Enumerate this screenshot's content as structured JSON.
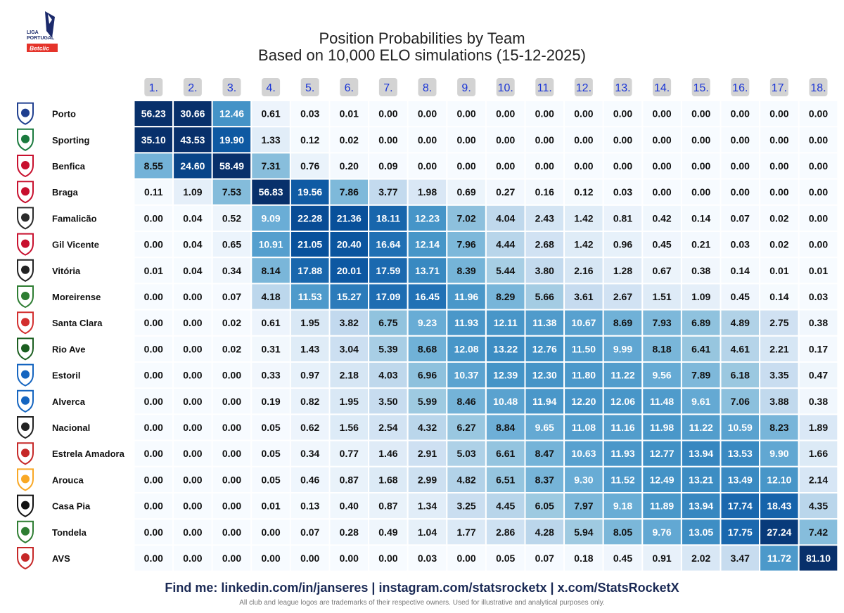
{
  "header": {
    "league_logo_text_top": "LIGA",
    "league_logo_text_mid": "PORTUGAL",
    "league_logo_badge": "Betclic",
    "title": "Position Probabilities by Team",
    "subtitle": "Based on 10,000 ELO simulations (15-12-2025)"
  },
  "footer": {
    "links": "Find me: linkedin.com/in/janseres | instagram.com/statsrocketx | x.com/StatsRocketX",
    "note": "All club and league logos are trademarks of their respective owners. Used for illustrative and analytical purposes only."
  },
  "chart_data": {
    "type": "heatmap",
    "title": "Position Probabilities by Team",
    "subtitle": "Based on 10,000 ELO simulations (15-12-2025)",
    "x_labels": [
      "1.",
      "2.",
      "3.",
      "4.",
      "5.",
      "6.",
      "7.",
      "8.",
      "9.",
      "10.",
      "11.",
      "12.",
      "13.",
      "14.",
      "15.",
      "16.",
      "17.",
      "18."
    ],
    "teams": [
      "Porto",
      "Sporting",
      "Benfica",
      "Braga",
      "Famalicão",
      "Gil Vicente",
      "Vitória",
      "Moreirense",
      "Santa Clara",
      "Rio Ave",
      "Estoril",
      "Alverca",
      "Nacional",
      "Estrela Amadora",
      "Arouca",
      "Casa Pia",
      "Tondela",
      "AVS"
    ],
    "crest_colors": [
      "#1f3f8f",
      "#1b7a3e",
      "#c8102e",
      "#c8102e",
      "#2b2b2b",
      "#c8102e",
      "#222222",
      "#2e7d32",
      "#d32f2f",
      "#1b5e20",
      "#1565c0",
      "#1565c0",
      "#222222",
      "#c62828",
      "#f9a825",
      "#111111",
      "#2e7d32",
      "#c62828"
    ],
    "values": [
      [
        56.23,
        30.66,
        12.46,
        0.61,
        0.03,
        0.01,
        0.0,
        0.0,
        0.0,
        0.0,
        0.0,
        0.0,
        0.0,
        0.0,
        0.0,
        0.0,
        0.0,
        0.0
      ],
      [
        35.1,
        43.53,
        19.9,
        1.33,
        0.12,
        0.02,
        0.0,
        0.0,
        0.0,
        0.0,
        0.0,
        0.0,
        0.0,
        0.0,
        0.0,
        0.0,
        0.0,
        0.0
      ],
      [
        8.55,
        24.6,
        58.49,
        7.31,
        0.76,
        0.2,
        0.09,
        0.0,
        0.0,
        0.0,
        0.0,
        0.0,
        0.0,
        0.0,
        0.0,
        0.0,
        0.0,
        0.0
      ],
      [
        0.11,
        1.09,
        7.53,
        56.83,
        19.56,
        7.86,
        3.77,
        1.98,
        0.69,
        0.27,
        0.16,
        0.12,
        0.03,
        0.0,
        0.0,
        0.0,
        0.0,
        0.0
      ],
      [
        0.0,
        0.04,
        0.52,
        9.09,
        22.28,
        21.36,
        18.11,
        12.23,
        7.02,
        4.04,
        2.43,
        1.42,
        0.81,
        0.42,
        0.14,
        0.07,
        0.02,
        0.0
      ],
      [
        0.0,
        0.04,
        0.65,
        10.91,
        21.05,
        20.4,
        16.64,
        12.14,
        7.96,
        4.44,
        2.68,
        1.42,
        0.96,
        0.45,
        0.21,
        0.03,
        0.02,
        0.0
      ],
      [
        0.01,
        0.04,
        0.34,
        8.14,
        17.88,
        20.01,
        17.59,
        13.71,
        8.39,
        5.44,
        3.8,
        2.16,
        1.28,
        0.67,
        0.38,
        0.14,
        0.01,
        0.01
      ],
      [
        0.0,
        0.0,
        0.07,
        4.18,
        11.53,
        15.27,
        17.09,
        16.45,
        11.96,
        8.29,
        5.66,
        3.61,
        2.67,
        1.51,
        1.09,
        0.45,
        0.14,
        0.03
      ],
      [
        0.0,
        0.0,
        0.02,
        0.61,
        1.95,
        3.82,
        6.75,
        9.23,
        11.93,
        12.11,
        11.38,
        10.67,
        8.69,
        7.93,
        6.89,
        4.89,
        2.75,
        0.38
      ],
      [
        0.0,
        0.0,
        0.02,
        0.31,
        1.43,
        3.04,
        5.39,
        8.68,
        12.08,
        13.22,
        12.76,
        11.5,
        9.99,
        8.18,
        6.41,
        4.61,
        2.21,
        0.17
      ],
      [
        0.0,
        0.0,
        0.0,
        0.33,
        0.97,
        2.18,
        4.03,
        6.96,
        10.37,
        12.39,
        12.3,
        11.8,
        11.22,
        9.56,
        7.89,
        6.18,
        3.35,
        0.47
      ],
      [
        0.0,
        0.0,
        0.0,
        0.19,
        0.82,
        1.95,
        3.5,
        5.99,
        8.46,
        10.48,
        11.94,
        12.2,
        12.06,
        11.48,
        9.61,
        7.06,
        3.88,
        0.38
      ],
      [
        0.0,
        0.0,
        0.0,
        0.05,
        0.62,
        1.56,
        2.54,
        4.32,
        6.27,
        8.84,
        9.65,
        11.08,
        11.16,
        11.98,
        11.22,
        10.59,
        8.23,
        1.89
      ],
      [
        0.0,
        0.0,
        0.0,
        0.05,
        0.34,
        0.77,
        1.46,
        2.91,
        5.03,
        6.61,
        8.47,
        10.63,
        11.93,
        12.77,
        13.94,
        13.53,
        9.9,
        1.66
      ],
      [
        0.0,
        0.0,
        0.0,
        0.05,
        0.46,
        0.87,
        1.68,
        2.99,
        4.82,
        6.51,
        8.37,
        9.3,
        11.52,
        12.49,
        13.21,
        13.49,
        12.1,
        2.14
      ],
      [
        0.0,
        0.0,
        0.0,
        0.01,
        0.13,
        0.4,
        0.87,
        1.34,
        3.25,
        4.45,
        6.05,
        7.97,
        9.18,
        11.89,
        13.94,
        17.74,
        18.43,
        4.35
      ],
      [
        0.0,
        0.0,
        0.0,
        0.0,
        0.07,
        0.28,
        0.49,
        1.04,
        1.77,
        2.86,
        4.28,
        5.94,
        8.05,
        9.76,
        13.05,
        17.75,
        27.24,
        7.42
      ],
      [
        0.0,
        0.0,
        0.0,
        0.0,
        0.0,
        0.0,
        0.0,
        0.03,
        0.0,
        0.05,
        0.07,
        0.18,
        0.45,
        0.91,
        2.02,
        3.47,
        11.72,
        81.1
      ]
    ],
    "colors": {
      "header_box": "#d3d3d3",
      "header_text": "#1a35d6",
      "text_light": "#ffffff",
      "text_dark": "#111111",
      "footer_text": "#1b2a55"
    }
  }
}
